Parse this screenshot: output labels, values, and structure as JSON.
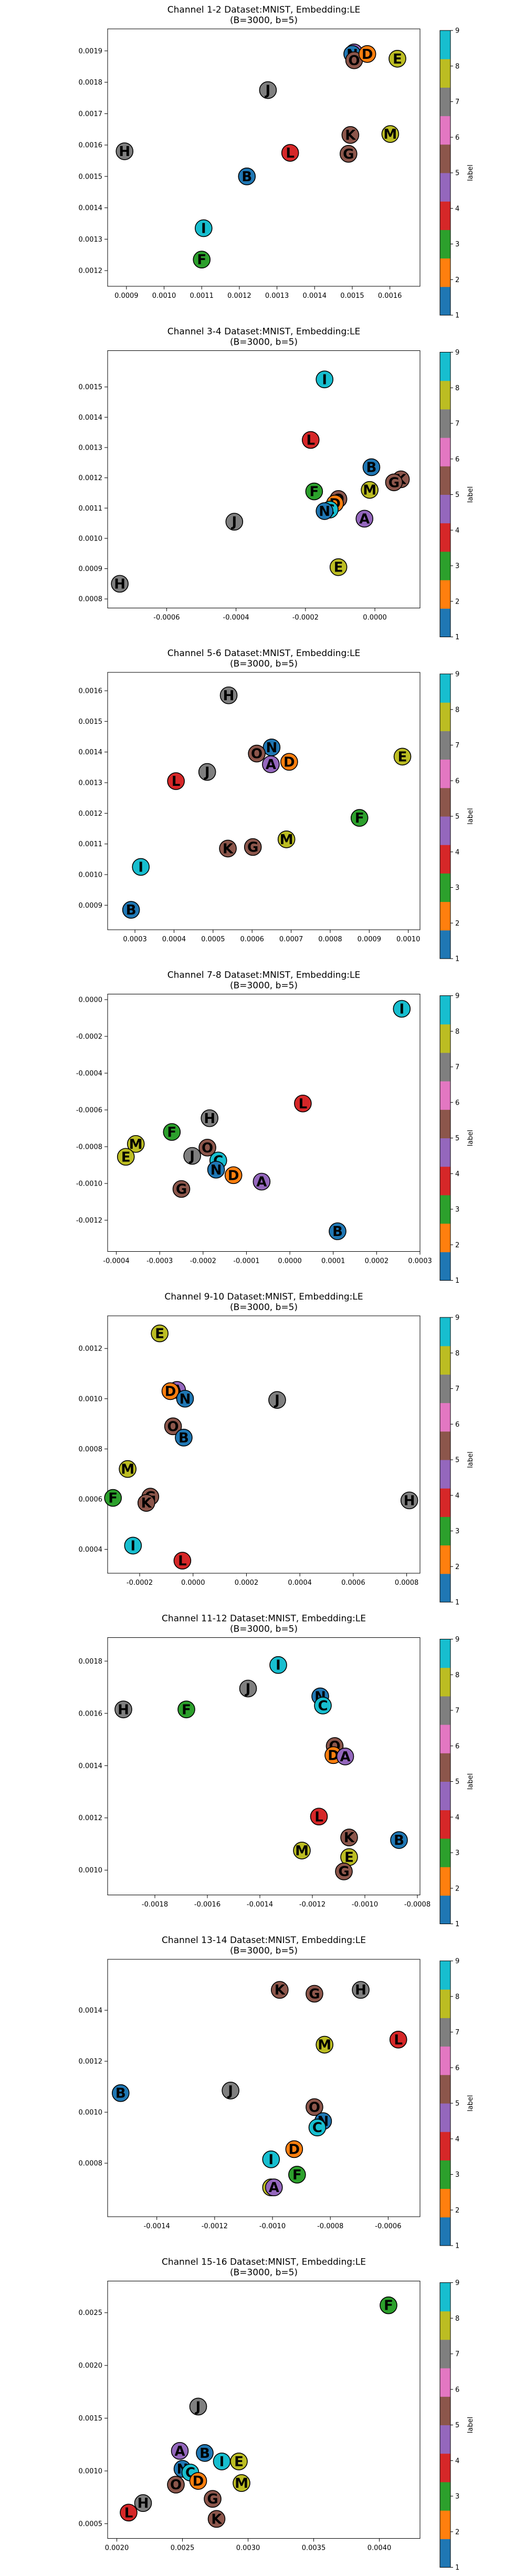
{
  "colors": {
    "cmap": [
      "#1f77b4",
      "#ff7f0e",
      "#2ca02c",
      "#d62728",
      "#9467bd",
      "#8c564b",
      "#e377c2",
      "#7f7f7f",
      "#bcbd22",
      "#17becf"
    ],
    "letter_label": {
      "A": 5,
      "B": 1,
      "C": 10,
      "D": 2,
      "E": 9,
      "F": 3,
      "G": 6,
      "H": 8,
      "I": 10,
      "J": 8,
      "K": 6,
      "L": 4,
      "M": 9,
      "N": 1,
      "O": 6
    }
  },
  "colorbar": {
    "ticks": [
      "1",
      "2",
      "3",
      "4",
      "5",
      "6",
      "7",
      "8",
      "9"
    ],
    "label": "label"
  },
  "chart_data": [
    {
      "type": "scatter",
      "title": "Channel 1-2 Dataset:MNIST, Embedding:LE",
      "subtitle": "(B=3000, b=5)",
      "xlim": [
        0.00085,
        0.00168
      ],
      "ylim": [
        0.00115,
        0.00197
      ],
      "xticks": [
        "0.0009",
        "0.0010",
        "0.0011",
        "0.0012",
        "0.0013",
        "0.0014",
        "0.0015",
        "0.0016"
      ],
      "yticks": [
        "0.0012",
        "0.0013",
        "0.0014",
        "0.0015",
        "0.0016",
        "0.0017",
        "0.0018",
        "0.0019"
      ],
      "points": [
        {
          "label": "A",
          "x": 0.001505,
          "y": 0.001895
        },
        {
          "label": "N",
          "x": 0.0015,
          "y": 0.00189
        },
        {
          "label": "O",
          "x": 0.001505,
          "y": 0.00187
        },
        {
          "label": "D",
          "x": 0.00154,
          "y": 0.00189
        },
        {
          "label": "E",
          "x": 0.00162,
          "y": 0.001875
        },
        {
          "label": "J",
          "x": 0.001276,
          "y": 0.001775
        },
        {
          "label": "M",
          "x": 0.001601,
          "y": 0.001635
        },
        {
          "label": "K",
          "x": 0.001495,
          "y": 0.001632
        },
        {
          "label": "H",
          "x": 0.000895,
          "y": 0.00158
        },
        {
          "label": "L",
          "x": 0.001335,
          "y": 0.001575
        },
        {
          "label": "G",
          "x": 0.00149,
          "y": 0.001572
        },
        {
          "label": "B",
          "x": 0.00122,
          "y": 0.0015
        },
        {
          "label": "I",
          "x": 0.001105,
          "y": 0.001335
        },
        {
          "label": "F",
          "x": 0.0011,
          "y": 0.001235
        }
      ]
    },
    {
      "type": "scatter",
      "title": "Channel 3-4 Dataset:MNIST, Embedding:LE",
      "subtitle": "(B=3000, b=5)",
      "xlim": [
        -0.00077,
        0.00013
      ],
      "ylim": [
        0.00077,
        0.00162
      ],
      "xticks": [
        "-0.0006",
        "-0.0004",
        "-0.0002",
        "0.0000"
      ],
      "yticks": [
        "0.0008",
        "0.0009",
        "0.0010",
        "0.0011",
        "0.0012",
        "0.0013",
        "0.0014",
        "0.0015"
      ],
      "points": [
        {
          "label": "I",
          "x": -0.000145,
          "y": 0.001525
        },
        {
          "label": "L",
          "x": -0.000185,
          "y": 0.001325
        },
        {
          "label": "B",
          "x": -1e-05,
          "y": 0.001235
        },
        {
          "label": "K",
          "x": 7.5e-05,
          "y": 0.001195
        },
        {
          "label": "G",
          "x": 5.5e-05,
          "y": 0.001185
        },
        {
          "label": "M",
          "x": -1.5e-05,
          "y": 0.00116
        },
        {
          "label": "F",
          "x": -0.000175,
          "y": 0.001155
        },
        {
          "label": "O",
          "x": -0.000105,
          "y": 0.00113
        },
        {
          "label": "D",
          "x": -0.000115,
          "y": 0.001115
        },
        {
          "label": "C",
          "x": -0.00013,
          "y": 0.001095
        },
        {
          "label": "N",
          "x": -0.000145,
          "y": 0.00109
        },
        {
          "label": "A",
          "x": -3e-05,
          "y": 0.001065
        },
        {
          "label": "J",
          "x": -0.000405,
          "y": 0.001055
        },
        {
          "label": "E",
          "x": -0.000105,
          "y": 0.000905
        },
        {
          "label": "H",
          "x": -0.000735,
          "y": 0.00085
        }
      ]
    },
    {
      "type": "scatter",
      "title": "Channel 5-6 Dataset:MNIST, Embedding:LE",
      "subtitle": "(B=3000, b=5)",
      "xlim": [
        0.00023,
        0.00103
      ],
      "ylim": [
        0.00082,
        0.00166
      ],
      "xticks": [
        "0.0003",
        "0.0004",
        "0.0005",
        "0.0006",
        "0.0007",
        "0.0008",
        "0.0009",
        "0.0010"
      ],
      "yticks": [
        "0.0009",
        "0.0010",
        "0.0011",
        "0.0012",
        "0.0013",
        "0.0014",
        "0.0015",
        "0.0016"
      ],
      "points": [
        {
          "label": "H",
          "x": 0.00054,
          "y": 0.001585
        },
        {
          "label": "N",
          "x": 0.00065,
          "y": 0.001415
        },
        {
          "label": "O",
          "x": 0.000612,
          "y": 0.001395
        },
        {
          "label": "E",
          "x": 0.000985,
          "y": 0.001385
        },
        {
          "label": "A",
          "x": 0.000648,
          "y": 0.00136
        },
        {
          "label": "D",
          "x": 0.000695,
          "y": 0.001368
        },
        {
          "label": "J",
          "x": 0.000485,
          "y": 0.001335
        },
        {
          "label": "L",
          "x": 0.000405,
          "y": 0.001305
        },
        {
          "label": "F",
          "x": 0.000875,
          "y": 0.001185
        },
        {
          "label": "M",
          "x": 0.000688,
          "y": 0.001115
        },
        {
          "label": "G",
          "x": 0.000602,
          "y": 0.00109
        },
        {
          "label": "K",
          "x": 0.000538,
          "y": 0.001085
        },
        {
          "label": "I",
          "x": 0.000315,
          "y": 0.001025
        },
        {
          "label": "B",
          "x": 0.00029,
          "y": 0.000885
        }
      ]
    },
    {
      "type": "scatter",
      "title": "Channel 7-8 Dataset:MNIST, Embedding:LE",
      "subtitle": "(B=3000, b=5)",
      "xlim": [
        -0.00042,
        0.0003
      ],
      "ylim": [
        -0.00137,
        3e-05
      ],
      "xticks": [
        "-0.0004",
        "-0.0003",
        "-0.0002",
        "-0.0001",
        "0.0000",
        "0.0001",
        "0.0002",
        "0.0003"
      ],
      "yticks": [
        "0.0000",
        "-0.0002",
        "-0.0004",
        "-0.0006",
        "-0.0008",
        "-0.0010",
        "-0.0012"
      ],
      "points": [
        {
          "label": "I",
          "x": 0.000258,
          "y": -5e-05
        },
        {
          "label": "L",
          "x": 3e-05,
          "y": -0.000565
        },
        {
          "label": "H",
          "x": -0.000185,
          "y": -0.000645
        },
        {
          "label": "F",
          "x": -0.000272,
          "y": -0.00072
        },
        {
          "label": "M",
          "x": -0.000355,
          "y": -0.000785
        },
        {
          "label": "O",
          "x": -0.00019,
          "y": -0.000805
        },
        {
          "label": "J",
          "x": -0.000225,
          "y": -0.00085
        },
        {
          "label": "E",
          "x": -0.000378,
          "y": -0.000855
        },
        {
          "label": "C",
          "x": -0.000165,
          "y": -0.000875
        },
        {
          "label": "N",
          "x": -0.00017,
          "y": -0.000925
        },
        {
          "label": "D",
          "x": -0.00013,
          "y": -0.000955
        },
        {
          "label": "A",
          "x": -6.5e-05,
          "y": -0.00099
        },
        {
          "label": "G",
          "x": -0.00025,
          "y": -0.00103
        },
        {
          "label": "B",
          "x": 0.00011,
          "y": -0.00126
        }
      ]
    },
    {
      "type": "scatter",
      "title": "Channel 9-10 Dataset:MNIST, Embedding:LE",
      "subtitle": "(B=3000, b=5)",
      "xlim": [
        -0.00032,
        0.00085
      ],
      "ylim": [
        0.000305,
        0.00133
      ],
      "xticks": [
        "-0.0002",
        "0.0000",
        "0.0002",
        "0.0004",
        "0.0006",
        "0.0008"
      ],
      "yticks": [
        "0.0004",
        "0.0006",
        "0.0008",
        "0.0010",
        "0.0012"
      ],
      "points": [
        {
          "label": "E",
          "x": -0.000125,
          "y": 0.00126
        },
        {
          "label": "A",
          "x": -6e-05,
          "y": 0.001035
        },
        {
          "label": "D",
          "x": -8.5e-05,
          "y": 0.00103
        },
        {
          "label": "N",
          "x": -3e-05,
          "y": 0.001
        },
        {
          "label": "J",
          "x": 0.000315,
          "y": 0.000995
        },
        {
          "label": "O",
          "x": -7.5e-05,
          "y": 0.00089
        },
        {
          "label": "B",
          "x": -3.5e-05,
          "y": 0.000845
        },
        {
          "label": "M",
          "x": -0.000245,
          "y": 0.00072
        },
        {
          "label": "G",
          "x": -0.00016,
          "y": 0.00061
        },
        {
          "label": "F",
          "x": -0.0003,
          "y": 0.000605
        },
        {
          "label": "K",
          "x": -0.000175,
          "y": 0.000585
        },
        {
          "label": "H",
          "x": 0.00081,
          "y": 0.000595
        },
        {
          "label": "I",
          "x": -0.000225,
          "y": 0.000415
        },
        {
          "label": "L",
          "x": -4e-05,
          "y": 0.000355
        }
      ]
    },
    {
      "type": "scatter",
      "title": "Channel 11-12 Dataset:MNIST, Embedding:LE",
      "subtitle": "(B=3000, b=5)",
      "xlim": [
        -0.00198,
        -0.00079
      ],
      "ylim": [
        0.000905,
        0.00189
      ],
      "xticks": [
        "-0.0018",
        "-0.0016",
        "-0.0014",
        "-0.0012",
        "-0.0010",
        "-0.0008"
      ],
      "yticks": [
        "0.0010",
        "0.0012",
        "0.0014",
        "0.0016",
        "0.0018"
      ],
      "points": [
        {
          "label": "I",
          "x": -0.00133,
          "y": 0.001785
        },
        {
          "label": "J",
          "x": -0.001445,
          "y": 0.001695
        },
        {
          "label": "N",
          "x": -0.00117,
          "y": 0.001665
        },
        {
          "label": "H",
          "x": -0.00192,
          "y": 0.001615
        },
        {
          "label": "F",
          "x": -0.00168,
          "y": 0.001615
        },
        {
          "label": "C",
          "x": -0.00116,
          "y": 0.00163
        },
        {
          "label": "O",
          "x": -0.001115,
          "y": 0.001475
        },
        {
          "label": "D",
          "x": -0.00112,
          "y": 0.00144
        },
        {
          "label": "A",
          "x": -0.001075,
          "y": 0.001435
        },
        {
          "label": "L",
          "x": -0.001175,
          "y": 0.001205
        },
        {
          "label": "K",
          "x": -0.00106,
          "y": 0.001125
        },
        {
          "label": "B",
          "x": -0.00087,
          "y": 0.001115
        },
        {
          "label": "M",
          "x": -0.00124,
          "y": 0.001075
        },
        {
          "label": "E",
          "x": -0.00106,
          "y": 0.00105
        },
        {
          "label": "G",
          "x": -0.00108,
          "y": 0.000995
        }
      ]
    },
    {
      "type": "scatter",
      "title": "Channel 13-14 Dataset:MNIST, Embedding:LE",
      "subtitle": "(B=3000, b=5)",
      "xlim": [
        -0.00157,
        -0.00049
      ],
      "ylim": [
        0.00059,
        0.0016
      ],
      "xticks": [
        "-0.0014",
        "-0.0012",
        "-0.0010",
        "-0.0008",
        "-0.0006"
      ],
      "yticks": [
        "0.0008",
        "0.0010",
        "0.0012",
        "0.0014"
      ],
      "points": [
        {
          "label": "K",
          "x": -0.000975,
          "y": 0.00148
        },
        {
          "label": "G",
          "x": -0.000855,
          "y": 0.001465
        },
        {
          "label": "H",
          "x": -0.000695,
          "y": 0.00148
        },
        {
          "label": "L",
          "x": -0.000565,
          "y": 0.001285
        },
        {
          "label": "M",
          "x": -0.00082,
          "y": 0.001265
        },
        {
          "label": "B",
          "x": -0.001525,
          "y": 0.001075
        },
        {
          "label": "J",
          "x": -0.001145,
          "y": 0.001085
        },
        {
          "label": "O",
          "x": -0.000855,
          "y": 0.00102
        },
        {
          "label": "N",
          "x": -0.000825,
          "y": 0.000965
        },
        {
          "label": "C",
          "x": -0.000845,
          "y": 0.00094
        },
        {
          "label": "D",
          "x": -0.000925,
          "y": 0.000855
        },
        {
          "label": "I",
          "x": -0.001005,
          "y": 0.000815
        },
        {
          "label": "F",
          "x": -0.000915,
          "y": 0.000755
        },
        {
          "label": "E",
          "x": -0.001005,
          "y": 0.000705
        },
        {
          "label": "A",
          "x": -0.000995,
          "y": 0.000705
        }
      ]
    },
    {
      "type": "scatter",
      "title": "Channel 15-16 Dataset:MNIST, Embedding:LE",
      "subtitle": "(B=3000, b=5)",
      "xlim": [
        0.00193,
        0.00431
      ],
      "ylim": [
        0.00036,
        0.0028
      ],
      "xticks": [
        "0.0020",
        "0.0025",
        "0.0030",
        "0.0035",
        "0.0040"
      ],
      "yticks": [
        "0.0005",
        "0.0010",
        "0.0015",
        "0.0020",
        "0.0025"
      ],
      "points": [
        {
          "label": "F",
          "x": 0.00407,
          "y": 0.00257
        },
        {
          "label": "J",
          "x": 0.00262,
          "y": 0.00161
        },
        {
          "label": "A",
          "x": 0.00248,
          "y": 0.00119
        },
        {
          "label": "B",
          "x": 0.00267,
          "y": 0.00117
        },
        {
          "label": "I",
          "x": 0.0028,
          "y": 0.00109
        },
        {
          "label": "E",
          "x": 0.00293,
          "y": 0.00109
        },
        {
          "label": "N",
          "x": 0.0025,
          "y": 0.00102
        },
        {
          "label": "C",
          "x": 0.00256,
          "y": 0.000985
        },
        {
          "label": "D",
          "x": 0.00262,
          "y": 0.000905
        },
        {
          "label": "M",
          "x": 0.00295,
          "y": 0.000885
        },
        {
          "label": "O",
          "x": 0.00245,
          "y": 0.00087
        },
        {
          "label": "H",
          "x": 0.0022,
          "y": 0.000695
        },
        {
          "label": "G",
          "x": 0.00273,
          "y": 0.000735
        },
        {
          "label": "L",
          "x": 0.00209,
          "y": 0.000605
        },
        {
          "label": "K",
          "x": 0.00276,
          "y": 0.000545
        }
      ]
    }
  ]
}
